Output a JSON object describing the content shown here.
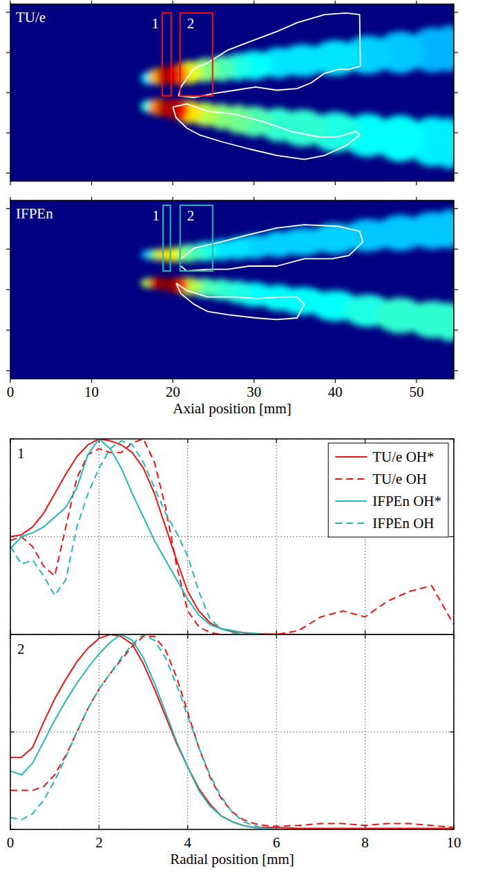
{
  "chart_data": [
    {
      "type": "heatmap",
      "title": "TU/e",
      "xlim": [
        0,
        54.6
      ],
      "ylim": [
        -11,
        11
      ],
      "xticks": [
        0,
        10,
        20,
        30,
        40,
        50
      ],
      "yticks": [
        -10,
        -5,
        0,
        5,
        10
      ],
      "tick_labels": false,
      "lobes": [
        {
          "x": [
            17,
            18,
            19,
            20,
            21,
            22,
            24,
            26,
            28,
            30,
            33,
            36,
            40,
            44,
            48,
            52,
            54
          ],
          "r": [
            1.8,
            2.0,
            2.1,
            2.2,
            2.3,
            2.5,
            2.8,
            3.0,
            3.2,
            3.4,
            3.7,
            4.0,
            4.3,
            4.7,
            5.0,
            5.3,
            5.5
          ],
          "width": [
            0.8,
            1.0,
            1.1,
            1.2,
            1.3,
            1.4,
            1.5,
            1.6,
            1.7,
            1.8,
            1.9,
            2.0,
            2.2,
            2.4,
            2.6,
            2.8,
            2.9
          ],
          "intensity": [
            0.35,
            0.7,
            0.95,
            0.9,
            0.75,
            0.6,
            0.5,
            0.45,
            0.4,
            0.38,
            0.35,
            0.35,
            0.35,
            0.33,
            0.32,
            0.3,
            0.3
          ]
        },
        {
          "x": [
            17,
            18,
            19,
            20,
            21,
            22,
            24,
            26,
            28,
            30,
            33,
            36,
            40,
            44,
            48,
            52,
            54
          ],
          "r": [
            -1.7,
            -1.8,
            -1.9,
            -2.0,
            -2.2,
            -2.4,
            -2.7,
            -3.0,
            -3.3,
            -3.6,
            -4.0,
            -4.4,
            -4.9,
            -5.3,
            -5.7,
            -6.1,
            -6.3
          ],
          "width": [
            0.8,
            1.0,
            1.1,
            1.2,
            1.3,
            1.4,
            1.5,
            1.6,
            1.8,
            1.9,
            2.1,
            2.3,
            2.5,
            2.7,
            2.9,
            3.1,
            3.2
          ],
          "intensity": [
            0.4,
            0.75,
            0.95,
            0.95,
            0.85,
            0.65,
            0.55,
            0.5,
            0.48,
            0.45,
            0.42,
            0.42,
            0.4,
            0.38,
            0.38,
            0.36,
            0.35
          ]
        }
      ],
      "contours": [
        {
          "x": [
            20.7,
            21.0,
            22.6,
            24.3,
            26.8,
            29.4,
            32.8,
            35.3,
            38.7,
            41.3,
            43.0,
            43.1,
            41.7,
            40.4,
            38.7,
            37.0,
            35.3,
            32.8,
            30.2,
            27.7,
            25.1,
            22.6,
            20.7
          ],
          "y": [
            -0.4,
            0.7,
            3.0,
            3.7,
            5.3,
            6.3,
            7.6,
            8.7,
            9.7,
            9.9,
            9.7,
            3.3,
            2.9,
            2.9,
            2.4,
            1.2,
            0.5,
            0.3,
            0.7,
            0.3,
            -0.1,
            -0.6,
            -0.4
          ]
        },
        {
          "x": [
            20.0,
            21.7,
            24.3,
            27.7,
            31.1,
            34.5,
            37.9,
            40.4,
            42.6,
            43.0,
            41.3,
            38.7,
            36.2,
            32.8,
            29.4,
            26.0,
            23.4,
            21.7,
            20.4,
            20.0
          ],
          "y": [
            -1.8,
            -1.4,
            -2.3,
            -2.7,
            -3.6,
            -4.8,
            -5.5,
            -5.5,
            -4.8,
            -5.3,
            -6.6,
            -7.8,
            -8.3,
            -7.8,
            -7.0,
            -6.1,
            -5.3,
            -4.4,
            -3.1,
            -1.8
          ]
        }
      ],
      "boxes": [
        {
          "label": "1",
          "x": [
            18.7,
            19.8
          ],
          "y": [
            -0.4,
            9.9
          ],
          "color": "#ee1111"
        },
        {
          "label": "2",
          "x": [
            20.9,
            24.9
          ],
          "y": [
            -0.4,
            9.9
          ],
          "color": "#ee1111"
        }
      ]
    },
    {
      "type": "heatmap",
      "title": "IFPEn",
      "x_label": "Axial position [mm]",
      "xlim": [
        0,
        54.6
      ],
      "ylim": [
        -11,
        11
      ],
      "xticks": [
        0,
        10,
        20,
        30,
        40,
        50
      ],
      "yticks": [
        -10,
        -5,
        0,
        5,
        10
      ],
      "tick_labels": "x",
      "lobes": [
        {
          "x": [
            17,
            18,
            19,
            20,
            21,
            22,
            24,
            26,
            28,
            30,
            33,
            36,
            40,
            44,
            48,
            52,
            54
          ],
          "r": [
            4.3,
            4.3,
            4.3,
            4.3,
            4.4,
            4.5,
            4.7,
            4.9,
            5.1,
            5.3,
            5.6,
            5.9,
            6.3,
            6.7,
            7.0,
            7.3,
            7.5
          ],
          "width": [
            0.6,
            0.7,
            0.8,
            0.9,
            1.0,
            1.1,
            1.2,
            1.3,
            1.4,
            1.5,
            1.6,
            1.7,
            1.9,
            2.0,
            2.2,
            2.3,
            2.4
          ],
          "intensity": [
            0.3,
            0.5,
            0.65,
            0.6,
            0.5,
            0.45,
            0.4,
            0.35,
            0.35,
            0.33,
            0.33,
            0.33,
            0.33,
            0.32,
            0.32,
            0.32,
            0.32
          ]
        },
        {
          "x": [
            17,
            18,
            19,
            20,
            21,
            22,
            24,
            26,
            28,
            30,
            33,
            36,
            40,
            44,
            48,
            52,
            54
          ],
          "r": [
            0.8,
            0.8,
            0.7,
            0.6,
            0.5,
            0.4,
            0.2,
            0.0,
            -0.3,
            -0.6,
            -1.0,
            -1.4,
            -2.0,
            -2.6,
            -3.2,
            -3.7,
            -4.0
          ],
          "width": [
            0.6,
            0.7,
            0.8,
            0.9,
            1.0,
            1.1,
            1.2,
            1.3,
            1.4,
            1.5,
            1.6,
            1.7,
            1.9,
            2.0,
            2.2,
            2.3,
            2.4
          ],
          "intensity": [
            0.55,
            0.9,
            1.0,
            0.95,
            0.8,
            0.55,
            0.45,
            0.42,
            0.4,
            0.38,
            0.38,
            0.38,
            0.38,
            0.4,
            0.42,
            0.42,
            0.42
          ]
        }
      ],
      "contours": [
        {
          "x": [
            21.0,
            22.6,
            26.0,
            29.4,
            32.8,
            36.2,
            40.4,
            43.0,
            43.4,
            41.7,
            39.6,
            36.2,
            32.8,
            29.4,
            26.8,
            24.3,
            21.7,
            21.0
          ],
          "y": [
            3.8,
            5.1,
            5.9,
            6.8,
            7.6,
            8.0,
            7.8,
            7.2,
            5.9,
            4.2,
            3.8,
            3.8,
            2.9,
            2.9,
            2.5,
            2.5,
            2.3,
            2.9
          ]
        },
        {
          "x": [
            20.4,
            21.7,
            24.3,
            27.7,
            30.2,
            33.6,
            35.3,
            36.2,
            35.3,
            32.8,
            30.2,
            26.8,
            24.3,
            22.6,
            21.0,
            20.4
          ],
          "y": [
            0.8,
            -0.1,
            -0.9,
            -0.9,
            -1.1,
            -0.9,
            -0.9,
            -1.8,
            -3.5,
            -3.7,
            -3.5,
            -3.1,
            -2.7,
            -1.8,
            -0.5,
            0.8
          ]
        }
      ],
      "boxes": [
        {
          "label": "1",
          "x": [
            18.8,
            19.7
          ],
          "y": [
            2.3,
            10.4
          ],
          "color": "#22b8b8"
        },
        {
          "label": "2",
          "x": [
            20.9,
            24.9
          ],
          "y": [
            2.3,
            10.4
          ],
          "color": "#22b8b8"
        }
      ]
    },
    {
      "type": "line",
      "title": "1",
      "xlim": [
        0,
        10
      ],
      "ylim": [
        0,
        1
      ],
      "xticks": [
        0,
        2,
        4,
        6,
        8,
        10
      ],
      "yticks": [
        0,
        0.5,
        1
      ],
      "grid": true,
      "legend": "upper right",
      "tick_labels": false,
      "x": [
        0,
        0.25,
        0.5,
        0.75,
        1,
        1.25,
        1.5,
        1.75,
        2,
        2.25,
        2.5,
        2.75,
        3,
        3.25,
        3.5,
        3.75,
        4,
        4.25,
        4.5,
        4.75,
        5,
        5.25,
        5.5,
        5.75,
        6,
        6.5,
        7,
        7.5,
        8,
        8.5,
        9,
        9.5,
        10
      ],
      "series": [
        {
          "name": "TU/e OH*",
          "color": "#ee1111",
          "line_style": "solid",
          "values": [
            0.5,
            0.51,
            0.55,
            0.62,
            0.72,
            0.82,
            0.91,
            0.97,
            1.0,
            0.99,
            0.97,
            0.93,
            0.85,
            0.72,
            0.55,
            0.38,
            0.22,
            0.12,
            0.06,
            0.03,
            0.015,
            0.01,
            0.005,
            0.003,
            0.002,
            0,
            0,
            0,
            0,
            0,
            0,
            0,
            0
          ]
        },
        {
          "name": "TU/e OH",
          "color": "#ee1111",
          "line_style": "dashed",
          "values": [
            0.48,
            0.5,
            0.45,
            0.35,
            0.3,
            0.55,
            0.8,
            0.92,
            0.95,
            0.93,
            0.93,
            0.98,
            1.0,
            0.88,
            0.65,
            0.35,
            0.12,
            0.04,
            0.01,
            0,
            0,
            0,
            0,
            0,
            0,
            0.02,
            0.09,
            0.12,
            0.09,
            0.17,
            0.22,
            0.25,
            0.05
          ]
        },
        {
          "name": "IFPEn OH*",
          "color": "#22b8b8",
          "line_style": "solid",
          "values": [
            0.44,
            0.5,
            0.52,
            0.55,
            0.6,
            0.65,
            0.75,
            0.92,
            1.0,
            0.95,
            0.85,
            0.72,
            0.6,
            0.48,
            0.38,
            0.28,
            0.18,
            0.1,
            0.05,
            0.03,
            0.02,
            0.01,
            0.005,
            0,
            0,
            0,
            0,
            0,
            0,
            0,
            0,
            0,
            0
          ]
        },
        {
          "name": "IFPEn OH",
          "color": "#22b8b8",
          "line_style": "dashed",
          "values": [
            0.45,
            0.36,
            0.38,
            0.3,
            0.2,
            0.28,
            0.55,
            0.72,
            0.85,
            0.95,
            0.99,
            0.97,
            0.88,
            0.75,
            0.62,
            0.52,
            0.4,
            0.22,
            0.08,
            0.03,
            0.01,
            0,
            0,
            0,
            0,
            0,
            0,
            0,
            0,
            0,
            0,
            0,
            0
          ]
        }
      ]
    },
    {
      "type": "line",
      "title": "2",
      "x_label": "Radial position [mm]",
      "xlim": [
        0,
        10
      ],
      "ylim": [
        0,
        1
      ],
      "xticks": [
        0,
        2,
        4,
        6,
        8,
        10
      ],
      "yticks": [
        0,
        0.5,
        1
      ],
      "grid": true,
      "tick_labels": "x",
      "x": [
        0,
        0.25,
        0.5,
        0.75,
        1,
        1.25,
        1.5,
        1.75,
        2,
        2.25,
        2.5,
        2.75,
        3,
        3.25,
        3.5,
        3.75,
        4,
        4.25,
        4.5,
        4.75,
        5,
        5.25,
        5.5,
        5.75,
        6,
        6.5,
        7,
        7.5,
        8,
        8.5,
        9,
        9.5,
        10
      ],
      "series": [
        {
          "name": "TU/e OH*",
          "color": "#ee1111",
          "line_style": "solid",
          "values": [
            0.37,
            0.37,
            0.42,
            0.55,
            0.67,
            0.77,
            0.86,
            0.93,
            0.98,
            1.0,
            0.99,
            0.95,
            0.85,
            0.72,
            0.58,
            0.44,
            0.32,
            0.21,
            0.13,
            0.07,
            0.04,
            0.02,
            0.01,
            0.01,
            0.01,
            0.005,
            0.005,
            0.005,
            0.005,
            0.005,
            0.005,
            0.005,
            0.005
          ]
        },
        {
          "name": "TU/e OH",
          "color": "#ee1111",
          "line_style": "dashed",
          "values": [
            0.2,
            0.2,
            0.2,
            0.22,
            0.28,
            0.38,
            0.5,
            0.62,
            0.72,
            0.8,
            0.87,
            0.94,
            0.99,
            0.99,
            0.92,
            0.78,
            0.6,
            0.42,
            0.27,
            0.16,
            0.09,
            0.05,
            0.03,
            0.02,
            0.015,
            0.02,
            0.03,
            0.03,
            0.02,
            0.03,
            0.03,
            0.02,
            0.01
          ]
        },
        {
          "name": "IFPEn OH*",
          "color": "#22b8b8",
          "line_style": "solid",
          "values": [
            0.3,
            0.28,
            0.34,
            0.45,
            0.56,
            0.66,
            0.75,
            0.83,
            0.9,
            0.96,
            1.0,
            0.97,
            0.88,
            0.75,
            0.6,
            0.45,
            0.32,
            0.2,
            0.12,
            0.07,
            0.04,
            0.02,
            0.01,
            0.005,
            0,
            0,
            0,
            0,
            0,
            0,
            0,
            0,
            0
          ]
        },
        {
          "name": "IFPEn OH",
          "color": "#22b8b8",
          "line_style": "dashed",
          "values": [
            0.06,
            0.05,
            0.08,
            0.15,
            0.25,
            0.37,
            0.5,
            0.62,
            0.72,
            0.8,
            0.88,
            0.95,
            1.0,
            0.97,
            0.88,
            0.74,
            0.58,
            0.42,
            0.28,
            0.17,
            0.09,
            0.04,
            0.02,
            0.005,
            0,
            0,
            0,
            0,
            0,
            0,
            0,
            0,
            0
          ]
        }
      ]
    }
  ]
}
